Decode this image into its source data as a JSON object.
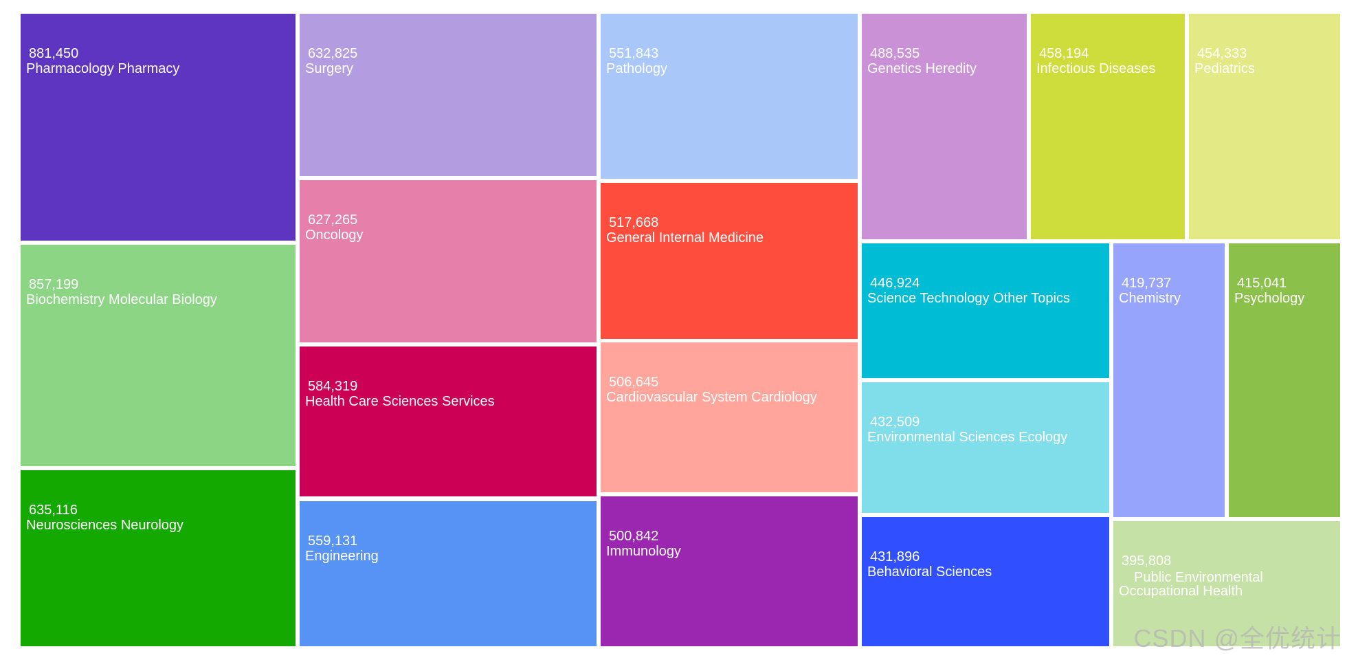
{
  "chart_data": {
    "type": "treemap",
    "title": "",
    "items": [
      {
        "value": 881450,
        "value_label": "881,450",
        "label": "Pharmacology Pharmacy",
        "color": "#5E35C1"
      },
      {
        "value": 857199,
        "value_label": "857,199",
        "label": "Biochemistry Molecular Biology",
        "color": "#8BD585"
      },
      {
        "value": 635116,
        "value_label": "635,116",
        "label": "Neurosciences Neurology",
        "color": "#14A900"
      },
      {
        "value": 632825,
        "value_label": "632,825",
        "label": "Surgery",
        "color": "#B39DE0"
      },
      {
        "value": 627265,
        "value_label": "627,265",
        "label": "Oncology",
        "color": "#E67FA9"
      },
      {
        "value": 584319,
        "value_label": "584,319",
        "label": "Health Care Sciences Services",
        "color": "#CC0055"
      },
      {
        "value": 559131,
        "value_label": "559,131",
        "label": "Engineering",
        "color": "#5693F4"
      },
      {
        "value": 551843,
        "value_label": "551,843",
        "label": "Pathology",
        "color": "#A9C7F8"
      },
      {
        "value": 517668,
        "value_label": "517,668",
        "label": "General Internal Medicine",
        "color": "#FF4D3D"
      },
      {
        "value": 506645,
        "value_label": "506,645",
        "label": "Cardiovascular System Cardiology",
        "color": "#FFA59B"
      },
      {
        "value": 500842,
        "value_label": "500,842",
        "label": "Immunology",
        "color": "#9B27B0"
      },
      {
        "value": 488535,
        "value_label": "488,535",
        "label": "Genetics Heredity",
        "color": "#CA91D6"
      },
      {
        "value": 458194,
        "value_label": "458,194",
        "label": "Infectious Diseases",
        "color": "#CEDD3C"
      },
      {
        "value": 454333,
        "value_label": "454,333",
        "label": "Pediatrics",
        "color": "#E2E985"
      },
      {
        "value": 446924,
        "value_label": "446,924",
        "label": "Science Technology Other Topics",
        "color": "#00BCD5"
      },
      {
        "value": 432509,
        "value_label": "432,509",
        "label": "Environmental Sciences Ecology",
        "color": "#80DEEA"
      },
      {
        "value": 431896,
        "value_label": "431,896",
        "label": "Behavioral Sciences",
        "color": "#304FFE"
      },
      {
        "value": 419737,
        "value_label": "419,737",
        "label": "Chemistry",
        "color": "#96A4FB"
      },
      {
        "value": 415041,
        "value_label": "415,041",
        "label": "Psychology",
        "color": "#8BC04A"
      },
      {
        "value": 395808,
        "value_label": "395,808",
        "label": "Public Environmental Occupational Health",
        "label_lines": [
          "Public Environmental",
          "Occupational Health"
        ],
        "color": "#C5E1A5"
      }
    ]
  },
  "watermark": "CSDN @全优统计"
}
